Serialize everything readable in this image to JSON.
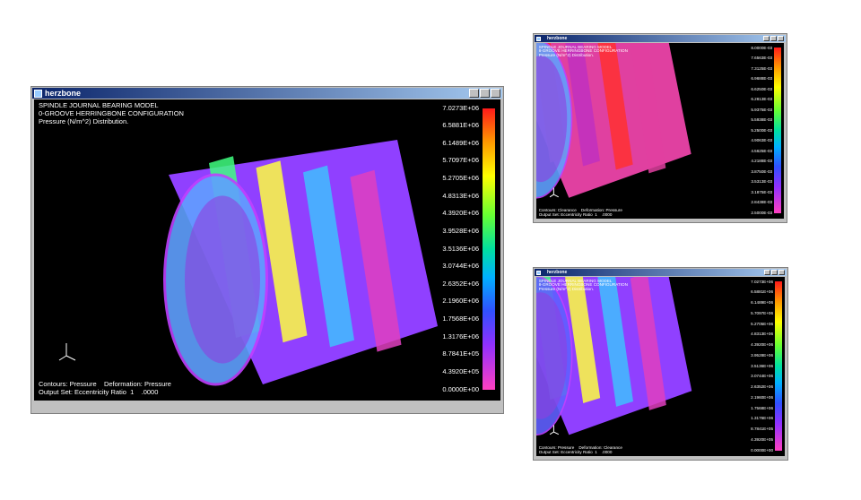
{
  "windows": [
    {
      "title": "herzbone",
      "header": [
        "SPINDLE JOURNAL BEARING MODEL",
        "0-GROOVE HERRINGBONE CONFIGURATION",
        "Pressure (N/m^2) Distribution."
      ],
      "legend": [
        "7.0273E+06",
        "6.5881E+06",
        "6.1489E+06",
        "5.7097E+06",
        "5.2705E+06",
        "4.8313E+06",
        "4.3920E+06",
        "3.9528E+06",
        "3.5136E+06",
        "3.0744E+06",
        "2.6352E+06",
        "2.1960E+06",
        "1.7568E+06",
        "1.3176E+06",
        "8.7841E+05",
        "4.3920E+05",
        "0.0000E+00"
      ],
      "footer": [
        "Contours: Pressure    Deformation: Pressure",
        "Output Set: Eccentricity Ratio  1    .0000"
      ]
    },
    {
      "title": "herzbone",
      "header": [
        "SPINDLE JOURNAL BEARING MODEL",
        "8-GROOVE HERRINGBONE CONFIGURATION",
        "Pressure (N/m^2) Distribution."
      ],
      "legend": [
        "8.0000E-03",
        "7.6563E-03",
        "7.3125E-03",
        "6.9688E-03",
        "6.6250E-03",
        "6.2813E-03",
        "5.9375E-03",
        "5.5938E-03",
        "5.2500E-03",
        "4.9063E-03",
        "4.5625E-03",
        "4.2188E-03",
        "3.8750E-03",
        "3.5313E-03",
        "3.1875E-03",
        "2.8438E-03",
        "2.5000E-03"
      ],
      "footer": [
        "Contours: Clearance    Deformation: Pressure",
        "Output Set: Eccentricity Ratio  1    .0000"
      ]
    },
    {
      "title": "herzbone",
      "header": [
        "SPINDLE JOURNAL BEARING MODEL",
        "8-GROOVE HERRINGBONE CONFIGURATION",
        "Pressure (N/m^2) Distribution."
      ],
      "legend": [
        "7.0273E+06",
        "6.5881E+06",
        "6.1489E+06",
        "5.7097E+06",
        "5.2705E+06",
        "4.8313E+06",
        "4.3920E+06",
        "3.9528E+06",
        "3.5136E+06",
        "3.0744E+06",
        "2.6352E+06",
        "2.1960E+06",
        "1.7568E+06",
        "1.3176E+06",
        "8.7841E+05",
        "4.3920E+05",
        "0.0000E+00"
      ],
      "footer": [
        "Contours: Pressure    Deformation: Clearance",
        "Output Set: Eccentricity Ratio  1    .0000"
      ]
    }
  ]
}
